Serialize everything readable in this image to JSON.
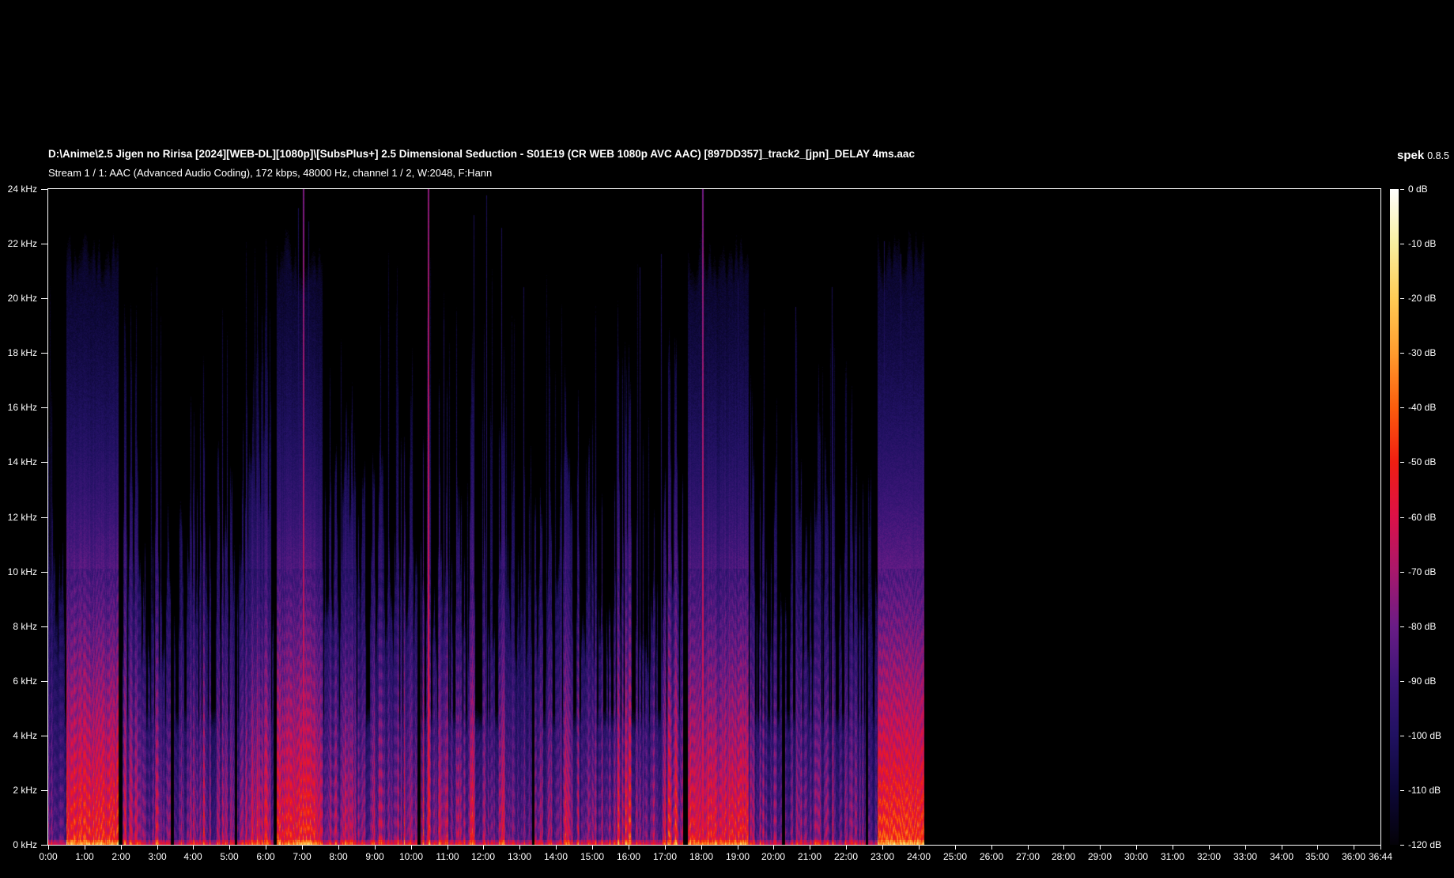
{
  "header": {
    "title": "D:\\Anime\\2.5 Jigen no Ririsa [2024][WEB-DL][1080p]\\[SubsPlus+] 2.5 Dimensional Seduction - S01E19 (CR WEB 1080p AVC AAC) [897DD357]_track2_[jpn]_DELAY 4ms.aac",
    "app_name": "spek",
    "app_version": "0.8.5",
    "stream_info": "Stream 1 / 1: AAC (Advanced Audio Coding), 172 kbps, 48000 Hz, channel 1 / 2, W:2048, F:Hann"
  },
  "chart_data": {
    "type": "heatmap",
    "subtype": "audio-spectrogram",
    "x_axis": {
      "unit": "time (min:sec)",
      "duration_seconds": 2204,
      "tick_labels": [
        "0:00",
        "1:00",
        "2:00",
        "3:00",
        "4:00",
        "5:00",
        "6:00",
        "7:00",
        "8:00",
        "9:00",
        "10:00",
        "11:00",
        "12:00",
        "13:00",
        "14:00",
        "15:00",
        "16:00",
        "17:00",
        "18:00",
        "19:00",
        "20:00",
        "21:00",
        "22:00",
        "23:00",
        "24:00",
        "25:00",
        "26:00",
        "27:00",
        "28:00",
        "29:00",
        "30:00",
        "31:00",
        "32:00",
        "33:00",
        "34:00",
        "35:00",
        "36:00",
        "36:44"
      ]
    },
    "y_axis": {
      "unit": "frequency",
      "min_khz": 0,
      "max_khz": 24,
      "tick_labels": [
        "24 kHz",
        "22 kHz",
        "20 kHz",
        "18 kHz",
        "16 kHz",
        "14 kHz",
        "12 kHz",
        "10 kHz",
        "8 kHz",
        "6 kHz",
        "4 kHz",
        "2 kHz",
        "0 kHz"
      ]
    },
    "color_scale": {
      "unit": "dB",
      "max_db": 0,
      "min_db": -120,
      "tick_labels": [
        "0 dB",
        "-10 dB",
        "-20 dB",
        "-30 dB",
        "-40 dB",
        "-50 dB",
        "-60 dB",
        "-70 dB",
        "-80 dB",
        "-90 dB",
        "-100 dB",
        "-110 dB",
        "-120 dB"
      ],
      "palette_stops": [
        {
          "db": 0,
          "color": "#ffffff"
        },
        {
          "db": -10,
          "color": "#f8f0a0"
        },
        {
          "db": -20,
          "color": "#ffcc55"
        },
        {
          "db": -30,
          "color": "#ff9c2e"
        },
        {
          "db": -40,
          "color": "#fc5d0d"
        },
        {
          "db": -50,
          "color": "#f01e12"
        },
        {
          "db": -60,
          "color": "#dc1148"
        },
        {
          "db": -70,
          "color": "#a8186c"
        },
        {
          "db": -80,
          "color": "#6a1c86"
        },
        {
          "db": -90,
          "color": "#3c1678"
        },
        {
          "db": -100,
          "color": "#201161"
        },
        {
          "db": -110,
          "color": "#0d0838"
        },
        {
          "db": -120,
          "color": "#040208"
        }
      ]
    },
    "content": {
      "audio_end_seconds": 1450,
      "render_seed": 1337,
      "segments": [
        {
          "start": 0.0,
          "end": 0.5,
          "type": "dialog",
          "energy": 0.42
        },
        {
          "start": 0.5,
          "end": 1.93,
          "type": "music",
          "energy": 0.6
        },
        {
          "start": 1.93,
          "end": 2.03,
          "type": "silence",
          "energy": 0
        },
        {
          "start": 2.03,
          "end": 3.37,
          "type": "dialog",
          "energy": 0.52
        },
        {
          "start": 3.37,
          "end": 3.45,
          "type": "silence",
          "energy": 0
        },
        {
          "start": 3.45,
          "end": 5.13,
          "type": "dialog",
          "energy": 0.5
        },
        {
          "start": 5.13,
          "end": 5.2,
          "type": "silence",
          "energy": 0
        },
        {
          "start": 5.2,
          "end": 6.2,
          "type": "dialog",
          "energy": 0.48
        },
        {
          "start": 6.2,
          "end": 6.3,
          "type": "silence",
          "energy": 0
        },
        {
          "start": 6.3,
          "end": 7.55,
          "type": "music",
          "energy": 0.55
        },
        {
          "start": 7.55,
          "end": 10.18,
          "type": "dialog",
          "energy": 0.5
        },
        {
          "start": 10.18,
          "end": 10.26,
          "type": "silence",
          "energy": 0
        },
        {
          "start": 10.26,
          "end": 12.6,
          "type": "dialog",
          "energy": 0.55
        },
        {
          "start": 12.6,
          "end": 13.33,
          "type": "dialog",
          "energy": 0.45
        },
        {
          "start": 13.33,
          "end": 13.4,
          "type": "silence",
          "energy": 0
        },
        {
          "start": 13.4,
          "end": 15.25,
          "type": "dialog",
          "energy": 0.5
        },
        {
          "start": 15.25,
          "end": 17.5,
          "type": "dialog",
          "energy": 0.56
        },
        {
          "start": 17.5,
          "end": 17.63,
          "type": "silence",
          "energy": 0
        },
        {
          "start": 17.63,
          "end": 19.3,
          "type": "music",
          "energy": 0.54
        },
        {
          "start": 19.3,
          "end": 20.22,
          "type": "dialog",
          "energy": 0.5
        },
        {
          "start": 20.22,
          "end": 20.3,
          "type": "silence",
          "energy": 0
        },
        {
          "start": 20.3,
          "end": 22.52,
          "type": "dialog",
          "energy": 0.47
        },
        {
          "start": 22.52,
          "end": 22.6,
          "type": "silence",
          "energy": 0
        },
        {
          "start": 22.6,
          "end": 22.86,
          "type": "dialog",
          "energy": 0.4
        },
        {
          "start": 22.86,
          "end": 24.15,
          "type": "music",
          "energy": 0.66
        },
        {
          "start": 24.15,
          "end": 36.733,
          "type": "none",
          "energy": 0
        }
      ],
      "spikes": [
        {
          "t_min": 7.03,
          "strength": 0.52
        },
        {
          "t_min": 10.47,
          "strength": 0.56
        },
        {
          "t_min": 18.03,
          "strength": 0.52
        }
      ],
      "tall_streaks": [
        {
          "t_min": 6.88,
          "h": 0.97
        },
        {
          "t_min": 7.18,
          "h": 0.95
        },
        {
          "t_min": 10.9,
          "h": 0.8
        },
        {
          "t_min": 11.72,
          "h": 0.96
        },
        {
          "t_min": 12.08,
          "h": 0.99
        },
        {
          "t_min": 12.5,
          "h": 0.94
        },
        {
          "t_min": 13.1,
          "h": 0.85
        },
        {
          "t_min": 16.3,
          "h": 0.88
        },
        {
          "t_min": 16.9,
          "h": 0.9
        },
        {
          "t_min": 19.0,
          "h": 0.86
        },
        {
          "t_min": 20.6,
          "h": 0.82
        },
        {
          "t_min": 21.6,
          "h": 0.85
        },
        {
          "t_min": 23.05,
          "h": 0.92
        },
        {
          "t_min": 23.5,
          "h": 0.9
        }
      ]
    }
  }
}
